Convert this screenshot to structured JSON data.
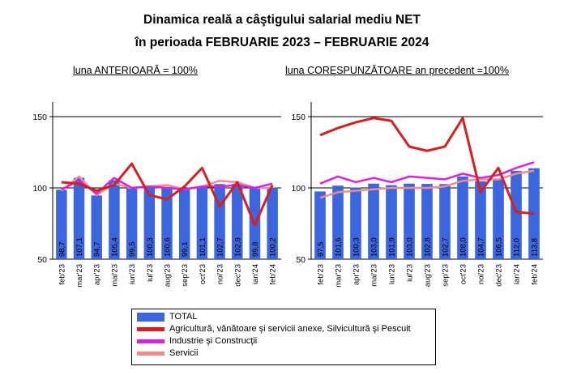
{
  "title_line1": "Dinamica reală a câştigului salarial mediu NET",
  "title_line2": "în perioada FEBRUARIE 2023 – FEBRUARIE 2024",
  "legend": [
    {
      "label": "TOTAL",
      "color": "#3b66e0",
      "kind": "bar"
    },
    {
      "label": "Agricultură, vânătoare şi servicii anexe, Silvicultură şi Pescuit",
      "color": "#d81e1e",
      "kind": "line"
    },
    {
      "label": "Industrie şi Construcţii",
      "color": "#e01ee0",
      "kind": "line"
    },
    {
      "label": "Servicii",
      "color": "#f08c8c",
      "kind": "line"
    }
  ],
  "chart_data": [
    {
      "type": "bar",
      "subtitle": "luna ANTERIOARĂ = 100%",
      "categories": [
        "feb'23",
        "mar'23",
        "apr'23",
        "mai'23",
        "iun'23",
        "iul'23",
        "aug'23",
        "sep'23",
        "oct'23",
        "noi'23",
        "dec'23",
        "ian'24",
        "feb'24"
      ],
      "ylim": [
        50,
        150
      ],
      "yticks": [
        "50",
        "100",
        "150"
      ],
      "series": [
        {
          "name": "TOTAL",
          "kind": "bar",
          "color": "#3b66e0",
          "values": [
            98.7,
            107.1,
            94.7,
            105.4,
            99.5,
            100.3,
            100.6,
            99.1,
            101.1,
            102.7,
            102.9,
            99.8,
            100.2
          ],
          "labels": [
            "98,7",
            "107,1",
            "94,7",
            "105,4",
            "99,5",
            "100,3",
            "100,6",
            "99,1",
            "101,1",
            "102,7",
            "102,9",
            "99,8",
            "100,2"
          ]
        },
        {
          "name": "Agricultură, vânătoare şi servicii anexe, Silvicultură şi Pescuit",
          "kind": "line",
          "color": "#d81e1e",
          "values": [
            104,
            103,
            98,
            102,
            117,
            95,
            92,
            101,
            114,
            87,
            104,
            74,
            102
          ]
        },
        {
          "name": "Industrie şi Construcţii",
          "kind": "line",
          "color": "#e01ee0",
          "values": [
            99,
            105,
            96,
            107,
            100,
            101,
            100,
            99,
            101,
            101,
            102,
            100,
            103
          ]
        },
        {
          "name": "Servicii",
          "kind": "line",
          "color": "#f08c8c",
          "values": [
            98,
            108,
            95,
            103,
            100,
            101,
            102,
            99,
            101,
            105,
            104,
            100,
            100
          ]
        }
      ]
    },
    {
      "type": "bar",
      "subtitle": "luna CORESPUNZĂTOARE an precedent =100%",
      "categories": [
        "feb'23",
        "mar'23",
        "apr'23",
        "mai'23",
        "iun'23",
        "iul'23",
        "aug'23",
        "sep'23",
        "oct'23",
        "noi'23",
        "dec'23",
        "ian'24",
        "feb'24"
      ],
      "ylim": [
        50,
        150
      ],
      "yticks": [
        "50",
        "100",
        "150"
      ],
      "series": [
        {
          "name": "TOTAL",
          "kind": "bar",
          "color": "#3b66e0",
          "values": [
            97.5,
            101.6,
            100.3,
            103.0,
            101.9,
            103.0,
            102.8,
            102.7,
            108.0,
            104.7,
            106.5,
            112.0,
            113.8
          ],
          "labels": [
            "97,5",
            "101,6",
            "100,3",
            "103,0",
            "101,9",
            "103,0",
            "102,8",
            "102,7",
            "108,0",
            "104,7",
            "106,5",
            "112,0",
            "113,8"
          ]
        },
        {
          "name": "Agricultură, vânătoare şi servicii anexe, Silvicultură şi Pescuit",
          "kind": "line",
          "color": "#d81e1e",
          "values": [
            137,
            142,
            146,
            149,
            147,
            129,
            126,
            129,
            149,
            97,
            114,
            83,
            82
          ]
        },
        {
          "name": "Industrie şi Construcţii",
          "kind": "line",
          "color": "#e01ee0",
          "values": [
            103,
            108,
            104,
            107,
            104,
            108,
            107,
            106,
            110,
            107,
            109,
            114,
            118
          ]
        },
        {
          "name": "Servicii",
          "kind": "line",
          "color": "#f08c8c",
          "values": [
            93,
            97,
            98,
            99,
            100,
            100,
            100,
            101,
            105,
            106,
            106,
            110,
            112
          ]
        }
      ]
    }
  ]
}
